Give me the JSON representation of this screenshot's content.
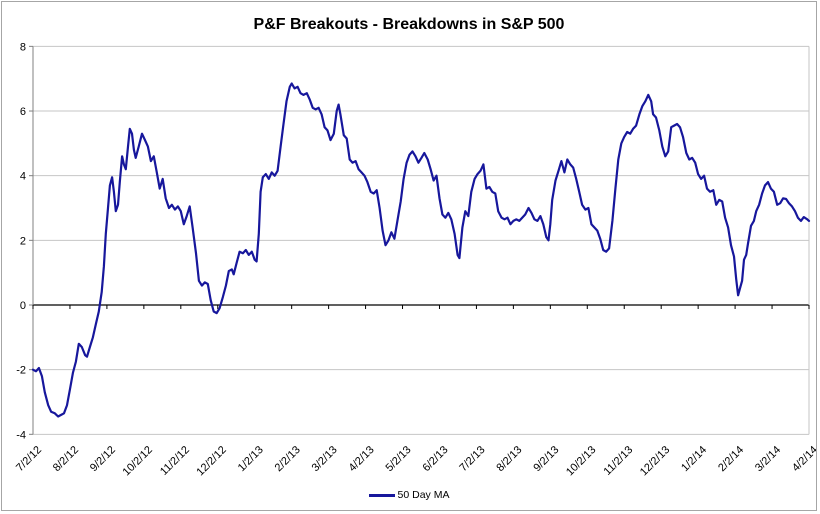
{
  "title": "P&F Breakouts - Breakdowns in S&P 500",
  "legend_label": "50 Day MA",
  "colors": {
    "line": "#17179c",
    "grid": "#c6c6c6",
    "zero_axis": "#000000",
    "spine": "#808080",
    "text": "#000000",
    "frame_border": "#a6a6a6"
  },
  "chart_data": {
    "type": "line",
    "title": "P&F Breakouts - Breakdowns in S&P 500",
    "xlabel": "",
    "ylabel": "",
    "ylim": [
      -4,
      8
    ],
    "y_ticks": [
      8,
      6,
      4,
      2,
      0,
      -2,
      -4
    ],
    "grid": "horizontal",
    "legend": {
      "position": "bottom-center",
      "entries": [
        "50 Day MA"
      ]
    },
    "x_unit": "months since first tick (7/2/12), fractional = days within month",
    "x_tick_labels": [
      "7/2/12",
      "8/2/12",
      "9/2/12",
      "10/2/12",
      "11/2/12",
      "12/2/12",
      "1/2/13",
      "2/2/13",
      "3/2/13",
      "4/2/13",
      "5/2/13",
      "6/2/13",
      "7/2/13",
      "8/2/13",
      "9/2/13",
      "10/2/13",
      "11/2/13",
      "12/2/13",
      "1/2/14",
      "2/2/14",
      "3/2/14",
      "4/2/14"
    ],
    "series": [
      {
        "name": "50 Day MA",
        "color": "#17179c",
        "points": [
          [
            0,
            -2
          ],
          [
            0.08,
            -2.05
          ],
          [
            0.16,
            -1.95
          ],
          [
            0.24,
            -2.2
          ],
          [
            0.32,
            -2.7
          ],
          [
            0.41,
            -3.1
          ],
          [
            0.49,
            -3.3
          ],
          [
            0.59,
            -3.35
          ],
          [
            0.68,
            -3.45
          ],
          [
            0.76,
            -3.4
          ],
          [
            0.84,
            -3.35
          ],
          [
            0.92,
            -3.1
          ],
          [
            1,
            -2.6
          ],
          [
            1.08,
            -2.1
          ],
          [
            1.16,
            -1.75
          ],
          [
            1.24,
            -1.2
          ],
          [
            1.32,
            -1.3
          ],
          [
            1.41,
            -1.55
          ],
          [
            1.46,
            -1.6
          ],
          [
            1.54,
            -1.3
          ],
          [
            1.62,
            -1
          ],
          [
            1.7,
            -0.6
          ],
          [
            1.78,
            -0.2
          ],
          [
            1.86,
            0.4
          ],
          [
            1.92,
            1.2
          ],
          [
            1.97,
            2.2
          ],
          [
            2.03,
            3
          ],
          [
            2.08,
            3.7
          ],
          [
            2.14,
            3.95
          ],
          [
            2.19,
            3.5
          ],
          [
            2.24,
            2.9
          ],
          [
            2.3,
            3.1
          ],
          [
            2.35,
            3.8
          ],
          [
            2.41,
            4.6
          ],
          [
            2.46,
            4.35
          ],
          [
            2.51,
            4.2
          ],
          [
            2.57,
            4.9
          ],
          [
            2.62,
            5.45
          ],
          [
            2.68,
            5.3
          ],
          [
            2.73,
            4.8
          ],
          [
            2.78,
            4.55
          ],
          [
            2.86,
            4.9
          ],
          [
            2.95,
            5.3
          ],
          [
            3.03,
            5.1
          ],
          [
            3.11,
            4.9
          ],
          [
            3.19,
            4.45
          ],
          [
            3.27,
            4.6
          ],
          [
            3.35,
            4.1
          ],
          [
            3.43,
            3.6
          ],
          [
            3.51,
            3.9
          ],
          [
            3.59,
            3.3
          ],
          [
            3.68,
            3
          ],
          [
            3.76,
            3.1
          ],
          [
            3.84,
            2.95
          ],
          [
            3.92,
            3.05
          ],
          [
            4,
            2.9
          ],
          [
            4.08,
            2.5
          ],
          [
            4.16,
            2.75
          ],
          [
            4.24,
            3.05
          ],
          [
            4.32,
            2.4
          ],
          [
            4.41,
            1.6
          ],
          [
            4.49,
            0.75
          ],
          [
            4.57,
            0.6
          ],
          [
            4.65,
            0.7
          ],
          [
            4.73,
            0.65
          ],
          [
            4.81,
            0.15
          ],
          [
            4.89,
            -0.2
          ],
          [
            4.97,
            -0.25
          ],
          [
            5.05,
            -0.1
          ],
          [
            5.14,
            0.25
          ],
          [
            5.22,
            0.6
          ],
          [
            5.3,
            1.05
          ],
          [
            5.38,
            1.1
          ],
          [
            5.43,
            0.95
          ],
          [
            5.51,
            1.3
          ],
          [
            5.59,
            1.65
          ],
          [
            5.68,
            1.6
          ],
          [
            5.76,
            1.7
          ],
          [
            5.84,
            1.55
          ],
          [
            5.92,
            1.65
          ],
          [
            6,
            1.4
          ],
          [
            6.05,
            1.35
          ],
          [
            6.11,
            2.2
          ],
          [
            6.16,
            3.5
          ],
          [
            6.22,
            3.95
          ],
          [
            6.3,
            4.05
          ],
          [
            6.38,
            3.9
          ],
          [
            6.46,
            4.1
          ],
          [
            6.54,
            4
          ],
          [
            6.62,
            4.15
          ],
          [
            6.7,
            4.9
          ],
          [
            6.78,
            5.6
          ],
          [
            6.86,
            6.3
          ],
          [
            6.95,
            6.75
          ],
          [
            7,
            6.85
          ],
          [
            7.08,
            6.7
          ],
          [
            7.16,
            6.75
          ],
          [
            7.24,
            6.55
          ],
          [
            7.32,
            6.5
          ],
          [
            7.41,
            6.55
          ],
          [
            7.49,
            6.35
          ],
          [
            7.57,
            6.1
          ],
          [
            7.65,
            6.05
          ],
          [
            7.73,
            6.1
          ],
          [
            7.81,
            5.9
          ],
          [
            7.89,
            5.5
          ],
          [
            7.97,
            5.4
          ],
          [
            8.05,
            5.1
          ],
          [
            8.14,
            5.3
          ],
          [
            8.22,
            6
          ],
          [
            8.27,
            6.2
          ],
          [
            8.32,
            5.9
          ],
          [
            8.41,
            5.25
          ],
          [
            8.49,
            5.15
          ],
          [
            8.57,
            4.5
          ],
          [
            8.65,
            4.4
          ],
          [
            8.73,
            4.45
          ],
          [
            8.81,
            4.2
          ],
          [
            8.89,
            4.1
          ],
          [
            8.97,
            4
          ],
          [
            9.05,
            3.8
          ],
          [
            9.14,
            3.5
          ],
          [
            9.22,
            3.45
          ],
          [
            9.3,
            3.55
          ],
          [
            9.38,
            3
          ],
          [
            9.46,
            2.3
          ],
          [
            9.54,
            1.85
          ],
          [
            9.62,
            2
          ],
          [
            9.7,
            2.25
          ],
          [
            9.78,
            2.05
          ],
          [
            9.86,
            2.6
          ],
          [
            9.95,
            3.2
          ],
          [
            10.03,
            3.9
          ],
          [
            10.11,
            4.4
          ],
          [
            10.19,
            4.65
          ],
          [
            10.27,
            4.75
          ],
          [
            10.35,
            4.6
          ],
          [
            10.43,
            4.4
          ],
          [
            10.51,
            4.55
          ],
          [
            10.59,
            4.7
          ],
          [
            10.68,
            4.5
          ],
          [
            10.76,
            4.2
          ],
          [
            10.84,
            3.85
          ],
          [
            10.92,
            4
          ],
          [
            11,
            3.3
          ],
          [
            11.08,
            2.8
          ],
          [
            11.16,
            2.7
          ],
          [
            11.24,
            2.85
          ],
          [
            11.32,
            2.65
          ],
          [
            11.41,
            2.2
          ],
          [
            11.49,
            1.55
          ],
          [
            11.54,
            1.45
          ],
          [
            11.62,
            2.4
          ],
          [
            11.7,
            2.9
          ],
          [
            11.78,
            2.75
          ],
          [
            11.86,
            3.5
          ],
          [
            11.95,
            3.9
          ],
          [
            12.03,
            4.05
          ],
          [
            12.11,
            4.15
          ],
          [
            12.19,
            4.35
          ],
          [
            12.27,
            3.6
          ],
          [
            12.35,
            3.65
          ],
          [
            12.43,
            3.5
          ],
          [
            12.51,
            3.45
          ],
          [
            12.59,
            2.9
          ],
          [
            12.68,
            2.7
          ],
          [
            12.76,
            2.65
          ],
          [
            12.84,
            2.7
          ],
          [
            12.92,
            2.5
          ],
          [
            13,
            2.6
          ],
          [
            13.08,
            2.65
          ],
          [
            13.16,
            2.6
          ],
          [
            13.24,
            2.7
          ],
          [
            13.32,
            2.8
          ],
          [
            13.41,
            3
          ],
          [
            13.49,
            2.85
          ],
          [
            13.57,
            2.65
          ],
          [
            13.65,
            2.6
          ],
          [
            13.73,
            2.75
          ],
          [
            13.81,
            2.5
          ],
          [
            13.89,
            2.1
          ],
          [
            13.95,
            2
          ],
          [
            14,
            2.5
          ],
          [
            14.05,
            3.25
          ],
          [
            14.14,
            3.85
          ],
          [
            14.22,
            4.15
          ],
          [
            14.3,
            4.45
          ],
          [
            14.38,
            4.1
          ],
          [
            14.46,
            4.5
          ],
          [
            14.54,
            4.35
          ],
          [
            14.62,
            4.25
          ],
          [
            14.7,
            3.9
          ],
          [
            14.78,
            3.5
          ],
          [
            14.86,
            3.1
          ],
          [
            14.95,
            2.95
          ],
          [
            15.03,
            3
          ],
          [
            15.11,
            2.5
          ],
          [
            15.19,
            2.4
          ],
          [
            15.27,
            2.3
          ],
          [
            15.35,
            2.05
          ],
          [
            15.43,
            1.7
          ],
          [
            15.51,
            1.65
          ],
          [
            15.59,
            1.75
          ],
          [
            15.68,
            2.6
          ],
          [
            15.76,
            3.6
          ],
          [
            15.84,
            4.5
          ],
          [
            15.92,
            5
          ],
          [
            16,
            5.2
          ],
          [
            16.08,
            5.35
          ],
          [
            16.16,
            5.3
          ],
          [
            16.24,
            5.45
          ],
          [
            16.32,
            5.55
          ],
          [
            16.41,
            5.9
          ],
          [
            16.49,
            6.15
          ],
          [
            16.57,
            6.3
          ],
          [
            16.65,
            6.5
          ],
          [
            16.73,
            6.3
          ],
          [
            16.78,
            5.9
          ],
          [
            16.86,
            5.8
          ],
          [
            16.95,
            5.4
          ],
          [
            17.03,
            4.9
          ],
          [
            17.11,
            4.6
          ],
          [
            17.19,
            4.75
          ],
          [
            17.27,
            5.5
          ],
          [
            17.35,
            5.55
          ],
          [
            17.43,
            5.6
          ],
          [
            17.51,
            5.5
          ],
          [
            17.59,
            5.2
          ],
          [
            17.68,
            4.7
          ],
          [
            17.76,
            4.5
          ],
          [
            17.84,
            4.55
          ],
          [
            17.92,
            4.4
          ],
          [
            18,
            4.05
          ],
          [
            18.08,
            3.9
          ],
          [
            18.16,
            4
          ],
          [
            18.24,
            3.6
          ],
          [
            18.32,
            3.5
          ],
          [
            18.41,
            3.55
          ],
          [
            18.49,
            3.1
          ],
          [
            18.57,
            3.25
          ],
          [
            18.65,
            3.2
          ],
          [
            18.73,
            2.7
          ],
          [
            18.81,
            2.4
          ],
          [
            18.89,
            1.85
          ],
          [
            18.97,
            1.5
          ],
          [
            19.03,
            0.8
          ],
          [
            19.08,
            0.3
          ],
          [
            19.14,
            0.55
          ],
          [
            19.19,
            0.75
          ],
          [
            19.24,
            1.4
          ],
          [
            19.3,
            1.55
          ],
          [
            19.35,
            1.9
          ],
          [
            19.43,
            2.45
          ],
          [
            19.51,
            2.6
          ],
          [
            19.57,
            2.9
          ],
          [
            19.65,
            3.1
          ],
          [
            19.73,
            3.45
          ],
          [
            19.81,
            3.7
          ],
          [
            19.89,
            3.8
          ],
          [
            19.97,
            3.6
          ],
          [
            20.05,
            3.5
          ],
          [
            20.14,
            3.1
          ],
          [
            20.22,
            3.15
          ],
          [
            20.3,
            3.3
          ],
          [
            20.38,
            3.28
          ],
          [
            20.46,
            3.15
          ],
          [
            20.54,
            3.05
          ],
          [
            20.62,
            2.9
          ],
          [
            20.7,
            2.7
          ],
          [
            20.78,
            2.6
          ],
          [
            20.86,
            2.72
          ],
          [
            20.95,
            2.65
          ],
          [
            21,
            2.6
          ]
        ]
      }
    ]
  }
}
